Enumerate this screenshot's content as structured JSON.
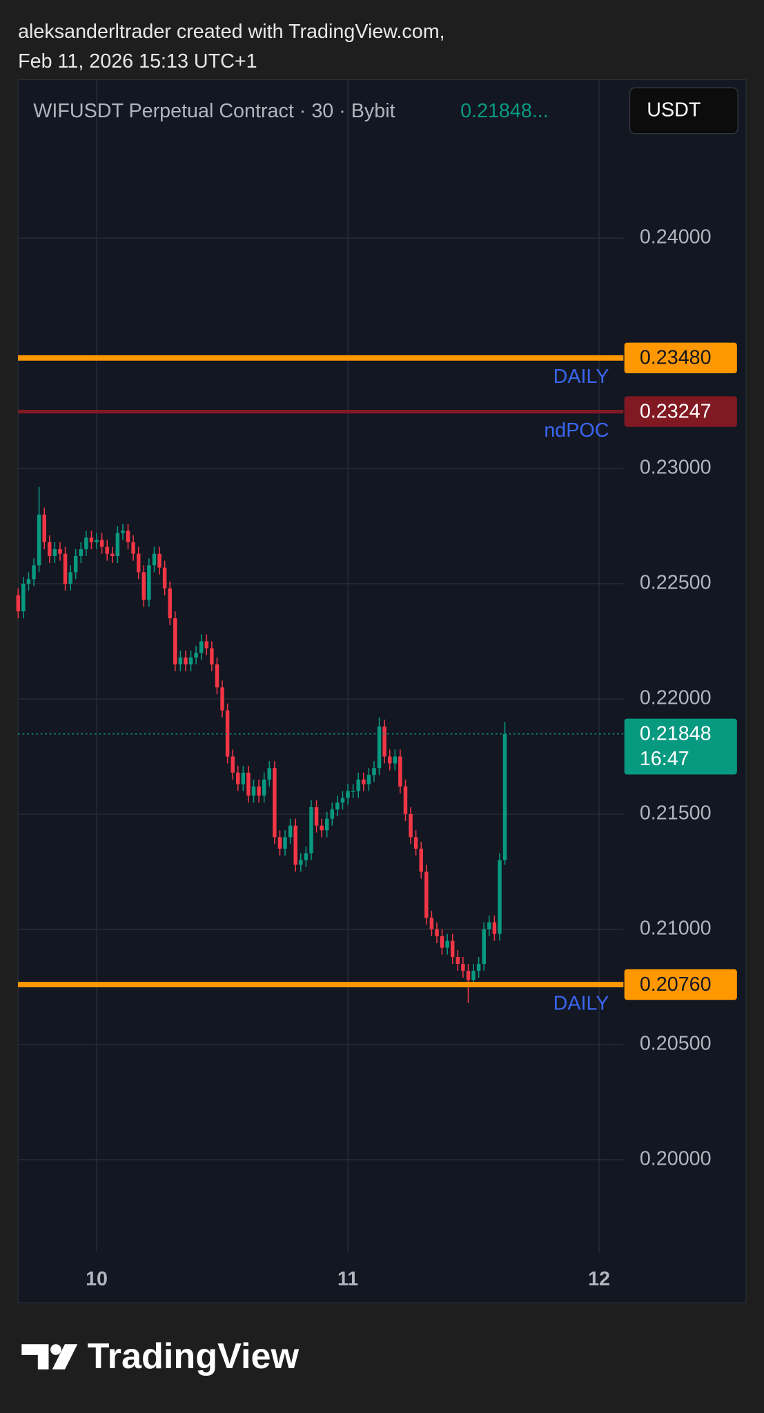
{
  "header": {
    "author_line": "aleksanderltrader created with TradingView.com,",
    "date_line": "Feb 11, 2026 15:13 UTC+1"
  },
  "currency_button": "USDT",
  "footer": {
    "logo": "TradingView"
  },
  "chart_data": {
    "type": "candlestick",
    "title": "WIFUSDT Perpetual Contract · 30 · Bybit",
    "last_label": "0.21848...",
    "up_color": "#089981",
    "down_color": "#f23645",
    "x": [
      9.6875,
      9.7083,
      9.7292,
      9.75,
      9.7708,
      9.7917,
      9.8125,
      9.8333,
      9.8542,
      9.875,
      9.8958,
      9.9167,
      9.9375,
      9.9583,
      9.9792,
      10,
      10.0208,
      10.0417,
      10.0625,
      10.0833,
      10.1042,
      10.125,
      10.1458,
      10.1667,
      10.1875,
      10.2083,
      10.2292,
      10.25,
      10.2708,
      10.2917,
      10.3125,
      10.3333,
      10.3542,
      10.375,
      10.3958,
      10.4167,
      10.4375,
      10.4583,
      10.4792,
      10.5,
      10.5208,
      10.5417,
      10.5625,
      10.5833,
      10.6042,
      10.625,
      10.6458,
      10.6667,
      10.6875,
      10.7083,
      10.7292,
      10.75,
      10.7708,
      10.7917,
      10.8125,
      10.8333,
      10.8542,
      10.875,
      10.8958,
      10.9167,
      10.9375,
      10.9583,
      10.9792,
      11,
      11.0208,
      11.0417,
      11.0625,
      11.0833,
      11.1042,
      11.125,
      11.1458,
      11.1667,
      11.1875,
      11.2083,
      11.2292,
      11.25,
      11.2708,
      11.2917,
      11.3125,
      11.3333,
      11.3542,
      11.375,
      11.3958,
      11.4167,
      11.4375,
      11.4583,
      11.4792,
      11.5,
      11.5208,
      11.5417,
      11.5625,
      11.5833,
      11.6042,
      11.625
    ],
    "open": [
      0.2245,
      0.2238,
      0.225,
      0.2252,
      0.2258,
      0.228,
      0.2268,
      0.2262,
      0.2265,
      0.2263,
      0.225,
      0.2255,
      0.2262,
      0.2265,
      0.227,
      0.2268,
      0.2269,
      0.2266,
      0.2263,
      0.2262,
      0.2272,
      0.2273,
      0.2268,
      0.2263,
      0.2255,
      0.2243,
      0.2258,
      0.2263,
      0.2257,
      0.2248,
      0.2235,
      0.2215,
      0.2218,
      0.2215,
      0.2218,
      0.222,
      0.2225,
      0.2222,
      0.2215,
      0.2205,
      0.2195,
      0.2175,
      0.2168,
      0.2163,
      0.2168,
      0.2158,
      0.2162,
      0.2158,
      0.2165,
      0.217,
      0.214,
      0.2135,
      0.214,
      0.2145,
      0.2128,
      0.213,
      0.2133,
      0.2153,
      0.2145,
      0.2143,
      0.2148,
      0.2152,
      0.2155,
      0.2157,
      0.216,
      0.216,
      0.2165,
      0.2163,
      0.2167,
      0.217,
      0.2188,
      0.2175,
      0.2172,
      0.2175,
      0.2162,
      0.215,
      0.214,
      0.2135,
      0.2125,
      0.2105,
      0.21,
      0.2097,
      0.2092,
      0.2095,
      0.2088,
      0.2085,
      0.2082,
      0.2078,
      0.2082,
      0.2085,
      0.21,
      0.2103,
      0.2098,
      0.213
    ],
    "high": [
      0.2248,
      0.2253,
      0.2255,
      0.2261,
      0.2292,
      0.2283,
      0.2271,
      0.2268,
      0.2268,
      0.2266,
      0.2258,
      0.2265,
      0.2268,
      0.2273,
      0.2273,
      0.2272,
      0.2272,
      0.2269,
      0.2266,
      0.2275,
      0.2276,
      0.2276,
      0.2271,
      0.2266,
      0.2258,
      0.2261,
      0.2266,
      0.2266,
      0.226,
      0.2251,
      0.2238,
      0.2221,
      0.2221,
      0.2221,
      0.2223,
      0.2228,
      0.2228,
      0.2225,
      0.2218,
      0.2208,
      0.2198,
      0.2178,
      0.2171,
      0.2171,
      0.2171,
      0.2165,
      0.2165,
      0.2168,
      0.2173,
      0.2173,
      0.2143,
      0.2143,
      0.2148,
      0.2148,
      0.2133,
      0.2136,
      0.2156,
      0.2156,
      0.2148,
      0.2151,
      0.2155,
      0.2158,
      0.216,
      0.2163,
      0.2163,
      0.2168,
      0.2168,
      0.217,
      0.2173,
      0.2192,
      0.2191,
      0.2178,
      0.2178,
      0.2178,
      0.2165,
      0.2153,
      0.2143,
      0.2138,
      0.2128,
      0.2108,
      0.2103,
      0.21,
      0.2098,
      0.2098,
      0.2091,
      0.2088,
      0.2085,
      0.2085,
      0.2088,
      0.2103,
      0.2106,
      0.2106,
      0.2133,
      0.219
    ],
    "low": [
      0.2235,
      0.2235,
      0.2247,
      0.2249,
      0.2255,
      0.2265,
      0.2259,
      0.2259,
      0.226,
      0.2247,
      0.2247,
      0.2252,
      0.2259,
      0.2262,
      0.2265,
      0.2265,
      0.2263,
      0.226,
      0.2259,
      0.2259,
      0.2269,
      0.2265,
      0.226,
      0.2252,
      0.224,
      0.224,
      0.2255,
      0.2254,
      0.2245,
      0.2232,
      0.2212,
      0.2212,
      0.2212,
      0.2212,
      0.2215,
      0.2217,
      0.2219,
      0.2212,
      0.2202,
      0.2192,
      0.2172,
      0.2165,
      0.216,
      0.216,
      0.2155,
      0.2155,
      0.2155,
      0.2155,
      0.2162,
      0.2137,
      0.2132,
      0.2132,
      0.2137,
      0.2125,
      0.2125,
      0.2127,
      0.213,
      0.2142,
      0.214,
      0.214,
      0.2145,
      0.2149,
      0.2152,
      0.2154,
      0.2157,
      0.2157,
      0.216,
      0.216,
      0.2164,
      0.2167,
      0.2172,
      0.2169,
      0.2169,
      0.2159,
      0.2147,
      0.2137,
      0.2132,
      0.2122,
      0.2102,
      0.2097,
      0.2094,
      0.2089,
      0.2089,
      0.2085,
      0.2082,
      0.2079,
      0.2068,
      0.2075,
      0.2079,
      0.2082,
      0.2097,
      0.2095,
      0.2095,
      0.2128
    ],
    "close": [
      0.2238,
      0.225,
      0.2252,
      0.2258,
      0.228,
      0.2268,
      0.2262,
      0.2265,
      0.2263,
      0.225,
      0.2255,
      0.2262,
      0.2265,
      0.227,
      0.2268,
      0.2269,
      0.2266,
      0.2263,
      0.2262,
      0.2272,
      0.2273,
      0.2268,
      0.2263,
      0.2255,
      0.2243,
      0.2258,
      0.2263,
      0.2257,
      0.2248,
      0.2235,
      0.2215,
      0.2218,
      0.2215,
      0.2218,
      0.222,
      0.2225,
      0.2222,
      0.2215,
      0.2205,
      0.2195,
      0.2175,
      0.2168,
      0.2163,
      0.2168,
      0.2158,
      0.2162,
      0.2158,
      0.2165,
      0.217,
      0.214,
      0.2135,
      0.214,
      0.2145,
      0.2128,
      0.213,
      0.2133,
      0.2153,
      0.2145,
      0.2143,
      0.2148,
      0.2152,
      0.2155,
      0.2157,
      0.216,
      0.216,
      0.2165,
      0.2163,
      0.2167,
      0.217,
      0.2188,
      0.2175,
      0.2172,
      0.2175,
      0.2162,
      0.215,
      0.214,
      0.2135,
      0.2125,
      0.2105,
      0.21,
      0.2097,
      0.2092,
      0.2095,
      0.2088,
      0.2085,
      0.2082,
      0.2078,
      0.2082,
      0.2085,
      0.21,
      0.2103,
      0.2098,
      0.213,
      0.21848
    ],
    "xlim": [
      9.687,
      12.097
    ],
    "xticks": [
      10,
      11,
      12
    ],
    "ylim": [
      0.19598,
      0.24688
    ],
    "yticks": [
      {
        "value": 0.2,
        "label": "0.20000"
      },
      {
        "value": 0.205,
        "label": "0.20500"
      },
      {
        "value": 0.21,
        "label": "0.21000"
      },
      {
        "value": 0.215,
        "label": "0.21500"
      },
      {
        "value": 0.22,
        "label": "0.22000"
      },
      {
        "value": 0.225,
        "label": "0.22500"
      },
      {
        "value": 0.23,
        "label": "0.23000"
      },
      {
        "value": 0.24,
        "label": "0.24000"
      }
    ],
    "grid": true,
    "levels": [
      {
        "value": 0.2348,
        "label": "0.23480",
        "name": "DAILY",
        "color": "#ff9800",
        "label_color": "#131722"
      },
      {
        "value": 0.23247,
        "label": "0.23247",
        "name": "ndPOC",
        "color": "#801922",
        "label_color": "#ffffff"
      },
      {
        "value": 0.2076,
        "label": "0.20760",
        "name": "DAILY",
        "color": "#ff9800",
        "label_color": "#131722"
      }
    ],
    "last_price": {
      "value": 0.21848,
      "label": "0.21848",
      "countdown": "16:47",
      "color": "#089981"
    }
  }
}
